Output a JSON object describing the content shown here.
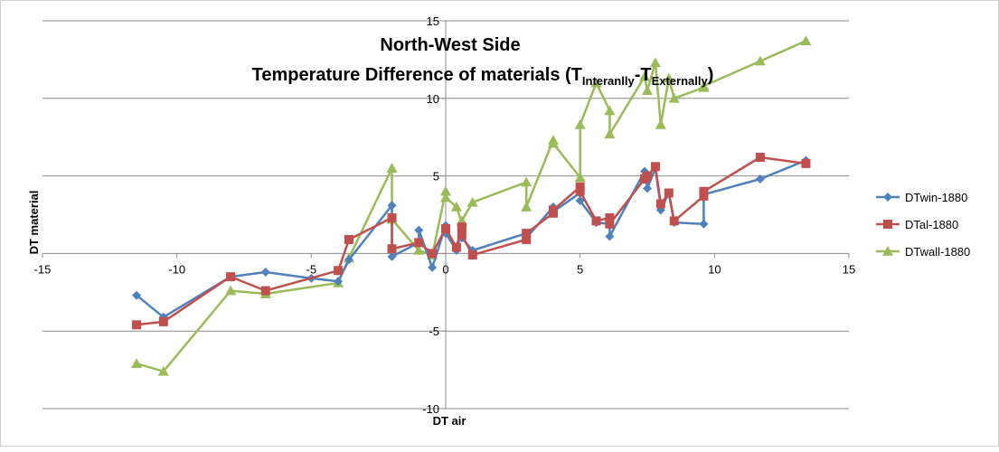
{
  "chart_data": {
    "type": "scatter",
    "title_line1": "North-West Side",
    "title_line2": {
      "text": "Temperature Difference of materials (T",
      "sub1": "Interanlly",
      "mid": "-T",
      "sub2": "Externally",
      "end": ")"
    },
    "xlabel": "DT air",
    "ylabel": "DT material",
    "xlim": [
      -15,
      15
    ],
    "ylim": [
      -10,
      15
    ],
    "xticks": [
      -15,
      -10,
      -5,
      0,
      5,
      10,
      15
    ],
    "yticks": [
      -10,
      -5,
      0,
      5,
      10,
      15
    ],
    "grid": true,
    "legend_position": "right",
    "series": [
      {
        "name": "DTwin-1880",
        "color": "#4F81BD",
        "marker": "diamond",
        "points": [
          [
            -11.5,
            -2.7
          ],
          [
            -10.5,
            -4.1
          ],
          [
            -8,
            -1.5
          ],
          [
            -6.7,
            -1.2
          ],
          [
            -5,
            -1.6
          ],
          [
            -4,
            -1.8
          ],
          [
            -3.6,
            -0.4
          ],
          [
            -2,
            3.1
          ],
          [
            -2,
            -0.2
          ],
          [
            -1,
            0.7
          ],
          [
            -1,
            1.5
          ],
          [
            -0.5,
            -0.9
          ],
          [
            0,
            1.8
          ],
          [
            0,
            1.3
          ],
          [
            0.4,
            0.2
          ],
          [
            0.6,
            1.6
          ],
          [
            0.6,
            1.0
          ],
          [
            1,
            0.2
          ],
          [
            3,
            1.3
          ],
          [
            3,
            1.0
          ],
          [
            4,
            3.0
          ],
          [
            4,
            2.7
          ],
          [
            5,
            3.9
          ],
          [
            5,
            3.4
          ],
          [
            5.6,
            2.0
          ],
          [
            6.1,
            1.9
          ],
          [
            6.1,
            1.1
          ],
          [
            7.4,
            5.3
          ],
          [
            7.5,
            4.2
          ],
          [
            7.8,
            5.5
          ],
          [
            8,
            3.0
          ],
          [
            8,
            2.8
          ],
          [
            8.3,
            3.9
          ],
          [
            8.5,
            2.0
          ],
          [
            9.6,
            1.9
          ],
          [
            9.6,
            3.8
          ],
          [
            11.7,
            4.8
          ],
          [
            13.4,
            6.0
          ]
        ]
      },
      {
        "name": "DTal-1880",
        "color": "#C0504D",
        "marker": "square",
        "points": [
          [
            -11.5,
            -4.6
          ],
          [
            -10.5,
            -4.4
          ],
          [
            -8,
            -1.5
          ],
          [
            -6.7,
            -2.4
          ],
          [
            -4,
            -1.1
          ],
          [
            -3.6,
            0.9
          ],
          [
            -2,
            2.3
          ],
          [
            -2,
            0.3
          ],
          [
            -1,
            0.7
          ],
          [
            -0.5,
            0.0
          ],
          [
            0,
            1.6
          ],
          [
            0.4,
            0.4
          ],
          [
            0.6,
            1.7
          ],
          [
            0.6,
            1.2
          ],
          [
            1,
            -0.1
          ],
          [
            3,
            0.9
          ],
          [
            3,
            1.3
          ],
          [
            4,
            2.6
          ],
          [
            4,
            2.8
          ],
          [
            5,
            4.3
          ],
          [
            5,
            4.0
          ],
          [
            5.6,
            2.1
          ],
          [
            6.1,
            2.3
          ],
          [
            6.1,
            1.9
          ],
          [
            7.4,
            4.8
          ],
          [
            7.5,
            5.0
          ],
          [
            7.8,
            5.6
          ],
          [
            8,
            3.2
          ],
          [
            8.3,
            3.9
          ],
          [
            8.5,
            2.1
          ],
          [
            9.6,
            3.7
          ],
          [
            9.6,
            4.0
          ],
          [
            11.7,
            6.2
          ],
          [
            13.4,
            5.8
          ]
        ]
      },
      {
        "name": "DTwall-1880",
        "color": "#9BBB59",
        "marker": "triangle",
        "points": [
          [
            -11.5,
            -7.1
          ],
          [
            -10.5,
            -7.6
          ],
          [
            -8,
            -2.4
          ],
          [
            -6.7,
            -2.6
          ],
          [
            -4,
            -1.9
          ],
          [
            -3.6,
            -0.3
          ],
          [
            -2,
            5.5
          ],
          [
            -2,
            2.2
          ],
          [
            -1,
            0.2
          ],
          [
            -0.5,
            -0.1
          ],
          [
            0,
            4.0
          ],
          [
            0,
            3.6
          ],
          [
            0.4,
            3.0
          ],
          [
            0.6,
            2.0
          ],
          [
            0.6,
            2.1
          ],
          [
            1,
            3.3
          ],
          [
            3,
            4.6
          ],
          [
            3,
            3.0
          ],
          [
            4,
            7.3
          ],
          [
            4,
            7.1
          ],
          [
            5,
            4.9
          ],
          [
            5,
            8.3
          ],
          [
            5.6,
            11.0
          ],
          [
            6.1,
            9.2
          ],
          [
            6.1,
            7.7
          ],
          [
            7.4,
            11.4
          ],
          [
            7.5,
            10.5
          ],
          [
            7.8,
            12.3
          ],
          [
            8,
            8.3
          ],
          [
            8.3,
            11.3
          ],
          [
            8.5,
            10.0
          ],
          [
            9.6,
            10.7
          ],
          [
            9.6,
            10.8
          ],
          [
            11.7,
            12.4
          ],
          [
            13.4,
            13.7
          ]
        ]
      }
    ]
  }
}
